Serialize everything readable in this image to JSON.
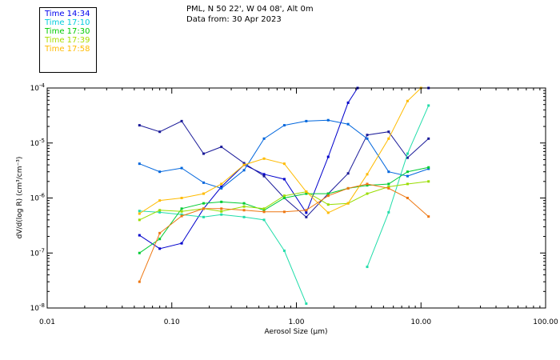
{
  "header": {
    "title_line1": "PML, N 50 22', W 04 08', Alt 0m",
    "title_line2": "Data from: 30 Apr 2023"
  },
  "chart_data": {
    "type": "line",
    "title": "PML, N 50 22', W 04 08', Alt 0m",
    "subtitle": "Data from: 30 Apr 2023",
    "xlabel": "Aerosol Size (μm)",
    "ylabel": "dV/d(log R) (cm³/cm⁻³)",
    "x_scale": "log",
    "y_scale": "log",
    "xlim": [
      0.01,
      100
    ],
    "ylim": [
      1e-08,
      0.0001
    ],
    "grid": false,
    "legend_position": "top-left",
    "x_ticks": [
      {
        "value": 0.01,
        "label": "0.01"
      },
      {
        "value": 0.1,
        "label": "0.10"
      },
      {
        "value": 1,
        "label": "1.00"
      },
      {
        "value": 10,
        "label": "10.00"
      },
      {
        "value": 100,
        "label": "100.00"
      }
    ],
    "y_ticks": [
      {
        "value": 1e-08,
        "base": "10",
        "exp": "-8"
      },
      {
        "value": 1e-07,
        "base": "10",
        "exp": "-7"
      },
      {
        "value": 1e-06,
        "base": "10",
        "exp": "-6"
      },
      {
        "value": 1e-05,
        "base": "10",
        "exp": "-5"
      },
      {
        "value": 0.0001,
        "base": "10",
        "exp": "-4"
      }
    ],
    "series": [
      {
        "name": "Time 14:34",
        "color": "#0000cc",
        "points": [
          [
            0.055,
            2.1e-07
          ],
          [
            0.08,
            1.2e-07
          ],
          [
            0.12,
            1.5e-07
          ],
          [
            0.18,
            6.4e-07
          ],
          [
            0.25,
            1.6e-06
          ],
          [
            0.38,
            4e-06
          ],
          [
            0.55,
            2.7e-06
          ],
          [
            0.8,
            2.2e-06
          ],
          [
            1.2,
            5.4e-07
          ],
          [
            1.8,
            5.6e-06
          ],
          [
            2.6,
            5.4e-05
          ],
          [
            3.1,
            0.0001
          ]
        ]
      },
      {
        "name": "Time 14:34",
        "color": "#0000cc",
        "points": [
          [
            11.5,
            0.0001
          ]
        ]
      },
      {
        "name": "Time 14:34",
        "color": "#1a1a99",
        "points": [
          [
            0.055,
            2.1e-05
          ],
          [
            0.08,
            1.6e-05
          ],
          [
            0.12,
            2.5e-05
          ],
          [
            0.18,
            6.4e-06
          ],
          [
            0.25,
            8.5e-06
          ],
          [
            0.38,
            4.3e-06
          ],
          [
            0.55,
            2.5e-06
          ],
          [
            0.8,
            1e-06
          ],
          [
            1.2,
            4.5e-07
          ],
          [
            1.8,
            1.2e-06
          ],
          [
            2.6,
            2.8e-06
          ],
          [
            3.7,
            1.4e-05
          ],
          [
            5.5,
            1.6e-05
          ],
          [
            7.8,
            5.4e-06
          ],
          [
            11.5,
            1.2e-05
          ]
        ]
      },
      {
        "name": "Time 17:10",
        "color": "#0066dd",
        "points": [
          [
            0.055,
            4.2e-06
          ],
          [
            0.08,
            3e-06
          ],
          [
            0.12,
            3.5e-06
          ],
          [
            0.18,
            1.9e-06
          ],
          [
            0.25,
            1.5e-06
          ],
          [
            0.38,
            3.2e-06
          ],
          [
            0.55,
            1.2e-05
          ],
          [
            0.8,
            2.1e-05
          ],
          [
            1.2,
            2.5e-05
          ],
          [
            1.8,
            2.6e-05
          ],
          [
            2.6,
            2.2e-05
          ],
          [
            3.7,
            1.2e-05
          ],
          [
            5.5,
            3e-06
          ],
          [
            7.8,
            2.5e-06
          ],
          [
            11.5,
            3.4e-06
          ]
        ]
      },
      {
        "name": "Time 17:10",
        "color": "#22ddaa",
        "points": [
          [
            0.055,
            5.8e-07
          ],
          [
            0.08,
            5.5e-07
          ],
          [
            0.12,
            5e-07
          ],
          [
            0.18,
            4.5e-07
          ],
          [
            0.25,
            5e-07
          ],
          [
            0.38,
            4.5e-07
          ],
          [
            0.55,
            4e-07
          ],
          [
            0.8,
            1.1e-07
          ],
          [
            1.2,
            1.2e-08
          ]
        ]
      },
      {
        "name": "Time 17:10",
        "color": "#22ddaa",
        "points": [
          [
            3.7,
            5.6e-08
          ],
          [
            5.5,
            5.5e-07
          ],
          [
            7.8,
            6.4e-06
          ],
          [
            11.5,
            4.8e-05
          ]
        ]
      },
      {
        "name": "Time 17:30",
        "color": "#00cc33",
        "points": [
          [
            0.055,
            1e-07
          ],
          [
            0.08,
            1.8e-07
          ],
          [
            0.12,
            6.4e-07
          ],
          [
            0.18,
            8e-07
          ],
          [
            0.25,
            8.5e-07
          ],
          [
            0.38,
            8e-07
          ],
          [
            0.55,
            6e-07
          ],
          [
            0.8,
            1e-06
          ],
          [
            1.2,
            1.2e-06
          ],
          [
            1.8,
            1.2e-06
          ],
          [
            2.6,
            1.5e-06
          ],
          [
            3.7,
            1.7e-06
          ],
          [
            5.5,
            1.8e-06
          ],
          [
            7.8,
            3e-06
          ],
          [
            11.5,
            3.6e-06
          ]
        ]
      },
      {
        "name": "Time 17:39",
        "color": "#99dd00",
        "points": [
          [
            0.055,
            4e-07
          ],
          [
            0.08,
            6e-07
          ],
          [
            0.12,
            5.7e-07
          ],
          [
            0.18,
            6.4e-07
          ],
          [
            0.25,
            5.7e-07
          ],
          [
            0.38,
            7e-07
          ],
          [
            0.55,
            6.4e-07
          ],
          [
            0.8,
            1.1e-06
          ],
          [
            1.2,
            1.3e-06
          ],
          [
            1.8,
            7.6e-07
          ],
          [
            2.6,
            8e-07
          ],
          [
            3.7,
            1.2e-06
          ],
          [
            5.5,
            1.6e-06
          ],
          [
            7.8,
            1.8e-06
          ],
          [
            11.5,
            2e-06
          ]
        ]
      },
      {
        "name": "Time 17:58",
        "color": "#ffbb00",
        "points": [
          [
            0.055,
            5.2e-07
          ],
          [
            0.08,
            9e-07
          ],
          [
            0.12,
            1e-06
          ],
          [
            0.18,
            1.2e-06
          ],
          [
            0.25,
            1.8e-06
          ],
          [
            0.38,
            4e-06
          ],
          [
            0.55,
            5.2e-06
          ],
          [
            0.8,
            4.2e-06
          ],
          [
            1.2,
            1.3e-06
          ],
          [
            1.8,
            5.4e-07
          ],
          [
            2.6,
            8e-07
          ],
          [
            3.7,
            2.7e-06
          ],
          [
            5.5,
            1.2e-05
          ],
          [
            7.8,
            5.8e-05
          ],
          [
            10,
            0.0001
          ]
        ]
      },
      {
        "name": "Time 17:58",
        "color": "#ee7711",
        "points": [
          [
            0.055,
            3e-08
          ],
          [
            0.08,
            2.3e-07
          ],
          [
            0.12,
            4.7e-07
          ],
          [
            0.18,
            6.4e-07
          ],
          [
            0.25,
            6.4e-07
          ],
          [
            0.38,
            6e-07
          ],
          [
            0.55,
            5.6e-07
          ],
          [
            0.8,
            5.6e-07
          ],
          [
            1.2,
            6e-07
          ],
          [
            1.8,
            1.1e-06
          ],
          [
            2.6,
            1.5e-06
          ],
          [
            3.7,
            1.8e-06
          ],
          [
            5.5,
            1.5e-06
          ],
          [
            7.8,
            1e-06
          ],
          [
            11.5,
            4.6e-07
          ]
        ]
      }
    ]
  },
  "legend": {
    "entries": [
      {
        "label": "Time 14:34",
        "color": "#0000ee"
      },
      {
        "label": "Time 17:10",
        "color": "#00ccdd"
      },
      {
        "label": "Time 17:30",
        "color": "#00cc00"
      },
      {
        "label": "Time 17:39",
        "color": "#aadd00"
      },
      {
        "label": "Time 17:58",
        "color": "#ffbb00"
      }
    ]
  }
}
